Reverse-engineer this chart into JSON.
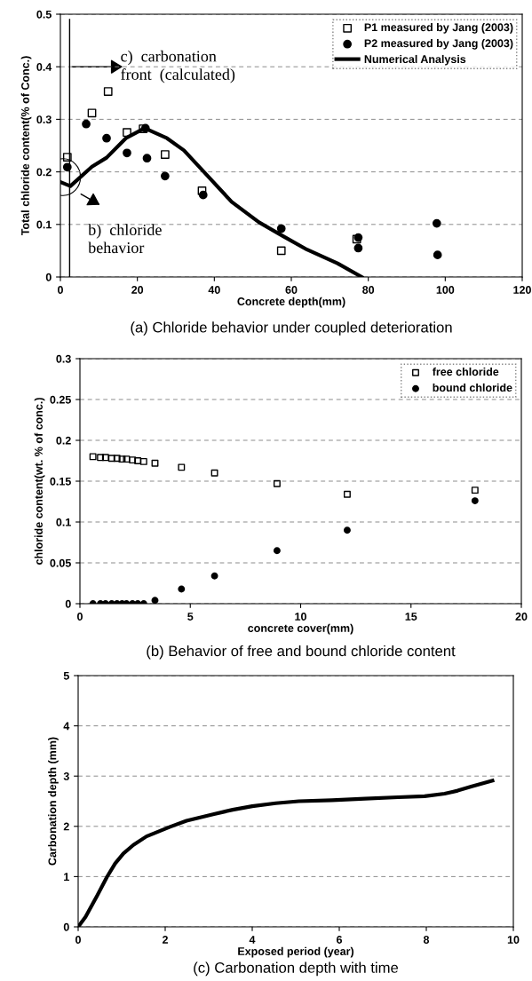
{
  "chart_data": [
    {
      "type": "scatter",
      "title": "(a) Chloride behavior under coupled deterioration",
      "xlabel": "Concrete depth(mm)",
      "ylabel": "Total chloride content(% of Conc.)",
      "xlim": [
        0,
        120
      ],
      "xticks": [
        0,
        20,
        40,
        60,
        80,
        100,
        120
      ],
      "ylim": [
        0,
        0.5
      ],
      "yticks": [
        0,
        0.1,
        0.2,
        0.3,
        0.4,
        0.5
      ],
      "grid": "y",
      "legend": "top right",
      "series": [
        {
          "name": "P1 measured by Jang (2003)",
          "color": "#000000",
          "marker": "square",
          "x": [
            1.8,
            8.2,
            12.4,
            17.3,
            21.5,
            27.2,
            36.8,
            57.4,
            77.0
          ],
          "values": [
            0.228,
            0.312,
            0.353,
            0.275,
            0.282,
            0.233,
            0.164,
            0.05,
            0.072
          ]
        },
        {
          "name": "P2 measured by Jang (2003)",
          "color": "#000000",
          "marker": "circle",
          "x": [
            1.8,
            6.7,
            12.0,
            17.3,
            22.1,
            22.5,
            27.2,
            37.1,
            57.4,
            77.4,
            77.4,
            97.8,
            98.0
          ],
          "values": [
            0.209,
            0.291,
            0.264,
            0.236,
            0.283,
            0.226,
            0.192,
            0.156,
            0.092,
            0.075,
            0.055,
            0.102,
            0.042
          ]
        },
        {
          "name": "Numerical Analysis",
          "type": "line",
          "color": "#000000",
          "marker": "none",
          "line_style": "solid",
          "x": [
            0.2,
            2.6,
            8.2,
            12.0,
            17.0,
            21.9,
            27.7,
            32.1,
            37.4,
            44.5,
            51.6,
            57.8,
            64.1,
            72.0,
            78.3
          ],
          "values": [
            0.18,
            0.173,
            0.21,
            0.227,
            0.264,
            0.283,
            0.264,
            0.241,
            0.199,
            0.143,
            0.104,
            0.078,
            0.052,
            0.026,
            0.0
          ]
        }
      ],
      "ref_lines": [
        {
          "axis": "x",
          "value": 2.4,
          "label": "c)  carbonation\nfront  (calculated)",
          "color": "#000000",
          "line_style": "solid"
        }
      ],
      "annotations": [
        "b)  chloride\nbehavior"
      ]
    },
    {
      "type": "scatter",
      "title": "(b) Behavior of free and bound chloride content",
      "xlabel": "concrete cover(mm)",
      "ylabel": "chloride content(wt. % of conc.)",
      "xlim": [
        0,
        20
      ],
      "xticks": [
        0,
        5,
        10,
        15,
        20
      ],
      "ylim": [
        0,
        0.3
      ],
      "yticks": [
        0,
        0.05,
        0.1,
        0.15,
        0.2,
        0.25,
        0.3
      ],
      "grid": "y",
      "legend": "top right",
      "series": [
        {
          "name": "free chloride",
          "color": "#000000",
          "marker": "square",
          "x": [
            0.59,
            0.93,
            1.16,
            1.44,
            1.68,
            1.91,
            2.11,
            2.38,
            2.62,
            2.89,
            3.4,
            4.6,
            6.1,
            8.93,
            12.11,
            17.9
          ],
          "values": [
            0.18,
            0.179,
            0.179,
            0.178,
            0.178,
            0.177,
            0.177,
            0.176,
            0.175,
            0.174,
            0.172,
            0.167,
            0.16,
            0.147,
            0.134,
            0.139
          ]
        },
        {
          "name": "bound chloride",
          "color": "#000000",
          "marker": "circle",
          "x": [
            0.59,
            0.93,
            1.16,
            1.44,
            1.68,
            1.91,
            2.11,
            2.38,
            2.62,
            2.89,
            3.4,
            4.6,
            6.1,
            8.93,
            12.11,
            17.9
          ],
          "values": [
            0,
            0,
            0,
            0,
            0,
            0,
            0,
            0,
            0,
            0,
            0.004,
            0.018,
            0.034,
            0.065,
            0.09,
            0.126
          ]
        }
      ]
    },
    {
      "type": "line",
      "title": "(c) Carbonation depth with time",
      "xlabel": "Exposed period (year)",
      "ylabel": "Carbonation depth (mm)",
      "xlim": [
        0,
        10
      ],
      "xticks": [
        0,
        2,
        4,
        6,
        8,
        10
      ],
      "ylim": [
        0,
        5
      ],
      "yticks": [
        0,
        1,
        2,
        3,
        4,
        5
      ],
      "grid": "y",
      "marker": "none",
      "line_style": "solid",
      "series": [
        {
          "color": "#000000",
          "x": [
            0,
            0.17,
            0.43,
            0.66,
            0.85,
            1.04,
            1.27,
            1.57,
            2.11,
            2.49,
            3.1,
            3.55,
            4.0,
            4.54,
            5.07,
            5.83,
            6.59,
            7.35,
            7.96,
            8.42,
            8.72,
            9.03,
            9.52
          ],
          "values": [
            0,
            0.2,
            0.61,
            0.99,
            1.26,
            1.46,
            1.63,
            1.8,
            1.99,
            2.11,
            2.24,
            2.33,
            2.4,
            2.46,
            2.5,
            2.52,
            2.55,
            2.58,
            2.6,
            2.65,
            2.71,
            2.79,
            2.91
          ]
        }
      ]
    }
  ]
}
